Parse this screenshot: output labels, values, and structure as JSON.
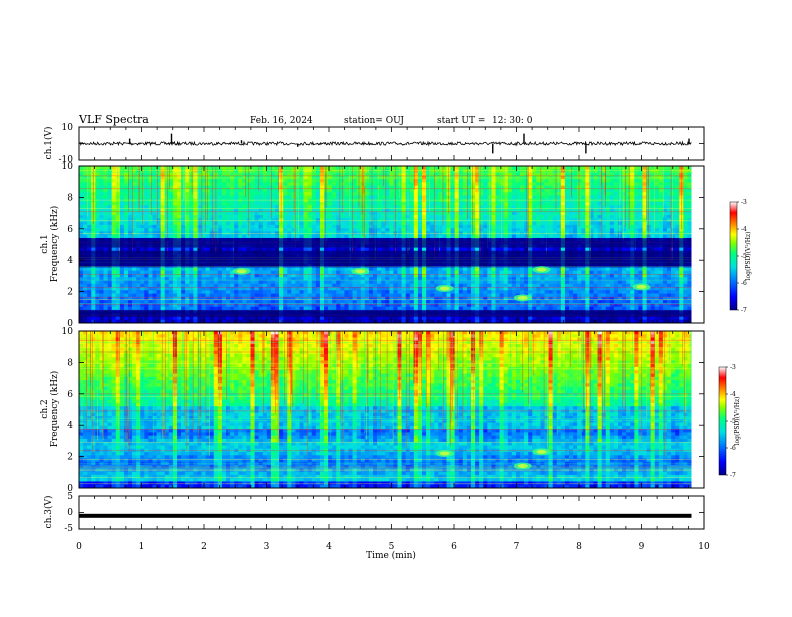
{
  "header": {
    "title": "VLF Spectra",
    "date": "Feb. 16, 2024",
    "station": "station= OUJ",
    "start_label": "start  UT =",
    "start_time": "12: 30: 0"
  },
  "chart_data": [
    {
      "type": "line",
      "name": "ch1-waveform",
      "ylabel": "ch.1(V)",
      "xlim": [
        0,
        10
      ],
      "ylim": [
        -10,
        10
      ],
      "yticks": [
        "10",
        "-10"
      ],
      "baseline": 0,
      "spikes": [
        {
          "x": 0.81,
          "y": 3
        },
        {
          "x": 1.48,
          "y": 6
        },
        {
          "x": 2.6,
          "y": 2
        },
        {
          "x": 3.5,
          "y": -2
        },
        {
          "x": 6.62,
          "y": -6
        },
        {
          "x": 7.12,
          "y": 6
        },
        {
          "x": 8.11,
          "y": -6
        },
        {
          "x": 9.76,
          "y": 3
        }
      ]
    },
    {
      "type": "heatmap",
      "name": "ch1-spectrogram",
      "ylabel": "ch.1",
      "ylabel2": "Frequency (kHz)",
      "xlim": [
        0,
        10
      ],
      "ylim": [
        0,
        10
      ],
      "yticks": [
        "0",
        "2",
        "4",
        "6",
        "8",
        "10"
      ],
      "data_end_min": 9.8,
      "colorbar": {
        "label": "log(PSD)(V²/Hz)",
        "range": [
          -7,
          -3
        ],
        "ticks": [
          "-3",
          "-4",
          "-5",
          "-6",
          "-7"
        ]
      },
      "dark_bands_khz": [
        [
          0.4,
          0.8
        ],
        [
          3.6,
          4.6
        ],
        [
          4.8,
          5.4
        ]
      ],
      "bursts": [
        {
          "x": 2.6,
          "y": 3.3
        },
        {
          "x": 4.5,
          "y": 3.3
        },
        {
          "x": 5.85,
          "y": 2.2
        },
        {
          "x": 7.1,
          "y": 1.6
        },
        {
          "x": 7.4,
          "y": 3.4
        },
        {
          "x": 9.0,
          "y": 2.3
        }
      ]
    },
    {
      "type": "heatmap",
      "name": "ch2-spectrogram",
      "ylabel": "ch.2",
      "ylabel2": "Frequency (kHz)",
      "xlim": [
        0,
        10
      ],
      "ylim": [
        0,
        10
      ],
      "yticks": [
        "0",
        "2",
        "4",
        "6",
        "8",
        "10"
      ],
      "data_end_min": 9.8,
      "colorbar": {
        "label": "log(PSD)(V²/Hz)",
        "range": [
          -7,
          -3
        ],
        "ticks": [
          "-3",
          "-4",
          "-5",
          "-6",
          "-7"
        ]
      },
      "bursts": [
        {
          "x": 5.85,
          "y": 2.2
        },
        {
          "x": 7.1,
          "y": 1.4
        },
        {
          "x": 7.4,
          "y": 2.3
        }
      ]
    },
    {
      "type": "line",
      "name": "ch3-trace",
      "ylabel": "ch.3(V)",
      "xlabel": "Time (min)",
      "xlim": [
        0,
        10
      ],
      "ylim": [
        -5,
        5
      ],
      "yticks": [
        "5",
        "0",
        "-5"
      ],
      "xticks": [
        "0",
        "1",
        "2",
        "3",
        "4",
        "5",
        "6",
        "7",
        "8",
        "9",
        "10"
      ],
      "level": -1
    }
  ],
  "colors": {
    "colormap": [
      "#00008a",
      "#0000ff",
      "#0080ff",
      "#00e0e0",
      "#00ff80",
      "#80ff00",
      "#ffff00",
      "#ff8000",
      "#ff0000",
      "#ffffff"
    ]
  }
}
